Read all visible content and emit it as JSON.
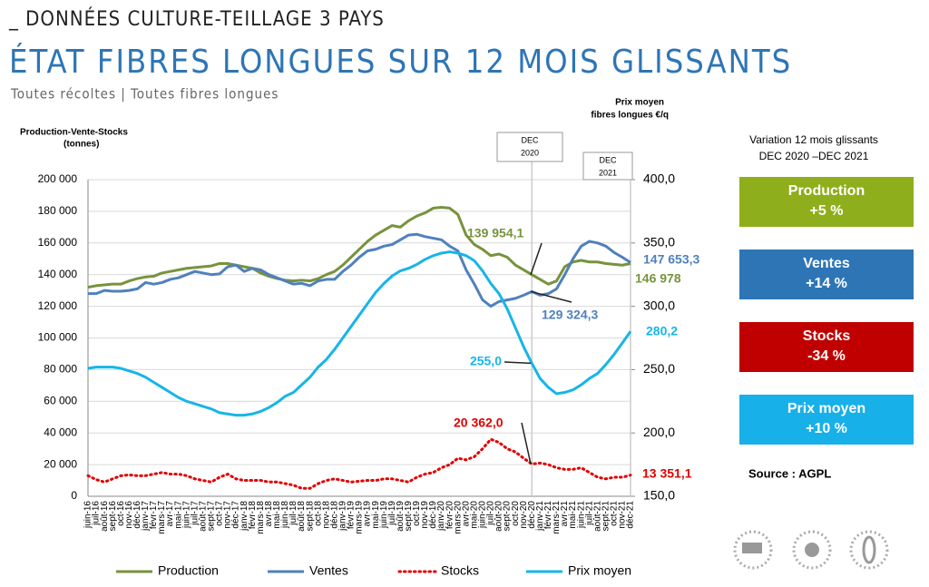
{
  "header": "_ DONNÉES CULTURE-TEILLAGE 3 PAYS",
  "chart_data": {
    "type": "line",
    "title": "ÉTAT FIBRES LONGUES SUR 12 MOIS GLISSANTS",
    "subtitle": "Toutes récoltes | Toutes fibres longues",
    "ylabel": [
      "Production-Vente-Stocks",
      "(tonnes)"
    ],
    "y2label": [
      "Prix moyen",
      "fibres longues €/q"
    ],
    "categories": [
      "juin-16",
      "juil-16",
      "août-16",
      "sept-16",
      "oct-16",
      "nov-16",
      "déc-16",
      "janv-17",
      "févr-17",
      "mars-17",
      "avr-17",
      "mai-17",
      "juin-17",
      "juil-17",
      "août-17",
      "sept-17",
      "oct-17",
      "nov-17",
      "déc-17",
      "janv-18",
      "févr-18",
      "mars-18",
      "avr-18",
      "mai-18",
      "juin-18",
      "juil-18",
      "août-18",
      "sept-18",
      "oct-18",
      "nov-18",
      "déc-18",
      "janv-19",
      "févr-19",
      "mars-19",
      "avr-19",
      "mai-19",
      "juin-19",
      "juil-19",
      "août-19",
      "sept-19",
      "oct-19",
      "nov-19",
      "déc-19",
      "janv-20",
      "févr-20",
      "mars-20",
      "avr-20",
      "mai-20",
      "juin-20",
      "juil-20",
      "août-20",
      "sept-20",
      "oct-20",
      "nov-20",
      "déc-20",
      "janv-21",
      "févr-21",
      "mars-21",
      "avr-21",
      "mai-21",
      "juin-21",
      "juil-21",
      "août-21",
      "sept-21",
      "oct-21",
      "nov-21",
      "déc-21"
    ],
    "ylim": [
      0,
      200000
    ],
    "yticks": [
      0,
      {
        "value": 20000,
        "label": "20 000"
      },
      {
        "value": 40000,
        "label": "40 000"
      },
      {
        "value": 60000,
        "label": "60 000"
      },
      {
        "value": 80000,
        "label": "80 000"
      },
      {
        "value": 100000,
        "label": "100 000"
      },
      {
        "value": 120000,
        "label": "120 000"
      },
      {
        "value": 140000,
        "label": "140 000"
      },
      {
        "value": 160000,
        "label": "160 000"
      },
      {
        "value": 180000,
        "label": "180 000"
      },
      {
        "value": 200000,
        "label": "200 000"
      }
    ],
    "y2lim": [
      150,
      400
    ],
    "y2ticks": [
      {
        "value": 150,
        "label": "150,0"
      },
      {
        "value": 200,
        "label": "200,0"
      },
      {
        "value": 250,
        "label": "250,0"
      },
      {
        "value": 300,
        "label": "300,0"
      },
      {
        "value": 350,
        "label": "350,0"
      },
      {
        "value": 400,
        "label": "400,0"
      }
    ],
    "grid": true,
    "legend": "bottom",
    "series": [
      {
        "name": "Production",
        "color": "#77933c",
        "style": "solid",
        "values": [
          132000,
          133000,
          133500,
          134000,
          134000,
          136000,
          137500,
          138500,
          139000,
          141000,
          142000,
          143000,
          144000,
          144500,
          145000,
          145500,
          147000,
          147000,
          146000,
          145000,
          144000,
          141000,
          139000,
          137500,
          136500,
          136000,
          136500,
          136000,
          137500,
          140000,
          142000,
          146000,
          151000,
          156000,
          161000,
          165000,
          168000,
          171000,
          170000,
          174000,
          177000,
          179000,
          182000,
          182500,
          182000,
          178000,
          165000,
          159000,
          156000,
          152000,
          153000,
          151000,
          146000,
          143000,
          139954.1,
          137000,
          134000,
          136000,
          145000,
          148000,
          149000,
          148000,
          148000,
          147000,
          146500,
          146000,
          146978
        ],
        "value_labels": [
          null,
          null,
          null,
          null,
          null,
          null,
          null,
          null,
          null,
          null,
          null,
          null,
          null,
          null,
          null,
          null,
          null,
          null,
          null,
          null,
          null,
          null,
          null,
          null,
          null,
          null,
          null,
          null,
          null,
          null,
          null,
          null,
          null,
          null,
          null,
          null,
          null,
          null,
          null,
          null,
          null,
          null,
          null,
          null,
          null,
          null,
          null,
          null,
          null,
          null,
          null,
          null,
          null,
          null,
          "139 954,1",
          null,
          null,
          null,
          null,
          null,
          null,
          null,
          null,
          null,
          null,
          null,
          "146 978"
        ]
      },
      {
        "name": "Ventes",
        "color": "#4f81bd",
        "style": "solid",
        "values": [
          128000,
          128000,
          130000,
          129500,
          129500,
          130000,
          131000,
          135000,
          134000,
          135000,
          137000,
          138000,
          140000,
          142000,
          141000,
          140000,
          140500,
          145000,
          146000,
          142000,
          144000,
          143000,
          140000,
          138000,
          136000,
          134000,
          134500,
          133000,
          136000,
          137000,
          137000,
          142000,
          146000,
          151000,
          155000,
          156000,
          158000,
          159000,
          162000,
          165000,
          165500,
          164000,
          163000,
          162000,
          158000,
          155000,
          143000,
          134000,
          124000,
          120000,
          123000,
          124000,
          125000,
          127000,
          129324.3,
          127000,
          128000,
          131000,
          140000,
          150000,
          158000,
          161000,
          160000,
          158000,
          154000,
          151000,
          147653.3
        ],
        "value_labels": [
          null,
          null,
          null,
          null,
          null,
          null,
          null,
          null,
          null,
          null,
          null,
          null,
          null,
          null,
          null,
          null,
          null,
          null,
          null,
          null,
          null,
          null,
          null,
          null,
          null,
          null,
          null,
          null,
          null,
          null,
          null,
          null,
          null,
          null,
          null,
          null,
          null,
          null,
          null,
          null,
          null,
          null,
          null,
          null,
          null,
          null,
          null,
          null,
          null,
          null,
          null,
          null,
          null,
          null,
          "129 324,3",
          null,
          null,
          null,
          null,
          null,
          null,
          null,
          null,
          null,
          null,
          null,
          "147 653,3"
        ]
      },
      {
        "name": "Stocks",
        "color": "#e00000",
        "style": "dotted",
        "values": [
          13000,
          10500,
          9000,
          11000,
          13000,
          13500,
          13000,
          13000,
          14000,
          15000,
          14000,
          14000,
          13000,
          11000,
          10000,
          9000,
          12000,
          14000,
          11000,
          10000,
          10000,
          10000,
          9000,
          9000,
          8000,
          7000,
          5000,
          5000,
          8000,
          10000,
          11000,
          10000,
          9000,
          9500,
          10000,
          10000,
          11000,
          11000,
          10000,
          9000,
          12000,
          14000,
          15000,
          18000,
          20000,
          24000,
          23000,
          25000,
          30000,
          36000,
          34000,
          30000,
          28000,
          24000,
          20362,
          21000,
          20000,
          18000,
          17000,
          17000,
          18000,
          15000,
          12000,
          11000,
          12000,
          12000,
          13351.1
        ],
        "value_labels": [
          null,
          null,
          null,
          null,
          null,
          null,
          null,
          null,
          null,
          null,
          null,
          null,
          null,
          null,
          null,
          null,
          null,
          null,
          null,
          null,
          null,
          null,
          null,
          null,
          null,
          null,
          null,
          null,
          null,
          null,
          null,
          null,
          null,
          null,
          null,
          null,
          null,
          null,
          null,
          null,
          null,
          null,
          null,
          null,
          null,
          null,
          null,
          null,
          null,
          null,
          null,
          null,
          null,
          null,
          "20 362,0",
          null,
          null,
          null,
          null,
          null,
          null,
          null,
          null,
          null,
          null,
          null,
          "13 351,1"
        ]
      },
      {
        "name": "Prix moyen",
        "color": "#17b5e8",
        "style": "solid",
        "axis": "y2",
        "values": [
          251,
          252,
          252,
          252,
          251,
          249,
          247,
          244,
          240,
          236,
          232,
          228,
          225,
          223,
          221,
          219,
          216,
          215,
          214,
          214,
          215,
          217,
          220,
          224,
          229,
          232,
          238,
          244,
          252,
          258,
          266,
          275,
          284,
          293,
          302,
          311,
          318,
          324,
          328,
          330,
          333,
          337,
          340,
          342,
          343,
          342,
          340,
          336,
          328,
          318,
          310,
          298,
          283,
          268,
          255,
          243,
          236,
          231,
          232,
          234,
          238,
          243,
          247,
          254,
          262,
          271,
          280.2
        ],
        "value_labels": [
          null,
          null,
          null,
          null,
          null,
          null,
          null,
          null,
          null,
          null,
          null,
          null,
          null,
          null,
          null,
          null,
          null,
          null,
          null,
          null,
          null,
          null,
          null,
          null,
          null,
          null,
          null,
          null,
          null,
          null,
          null,
          null,
          null,
          null,
          null,
          null,
          null,
          null,
          null,
          null,
          null,
          null,
          null,
          null,
          null,
          null,
          null,
          null,
          null,
          null,
          null,
          null,
          null,
          null,
          "255,0",
          null,
          null,
          null,
          null,
          null,
          null,
          null,
          null,
          null,
          null,
          null,
          "280,2"
        ]
      }
    ],
    "markers": [
      {
        "category": "déc-20",
        "label": [
          "DEC",
          "2020"
        ]
      },
      {
        "category": "déc-21",
        "label": [
          "DEC",
          "2021"
        ]
      }
    ]
  },
  "variation": {
    "title": [
      "Variation 12 mois glissants",
      "DEC 2020 –DEC 2021"
    ],
    "boxes": [
      {
        "label": "Production",
        "value": "+5 %",
        "color": "#8fae1b"
      },
      {
        "label": "Ventes",
        "value": "+14 %",
        "color": "#2e75b6"
      },
      {
        "label": "Stocks",
        "value": "-34 %",
        "color": "#c00000"
      },
      {
        "label": "Prix moyen",
        "value": "+10 %",
        "color": "#17b0e8"
      }
    ]
  },
  "source": "Source : AGPL"
}
